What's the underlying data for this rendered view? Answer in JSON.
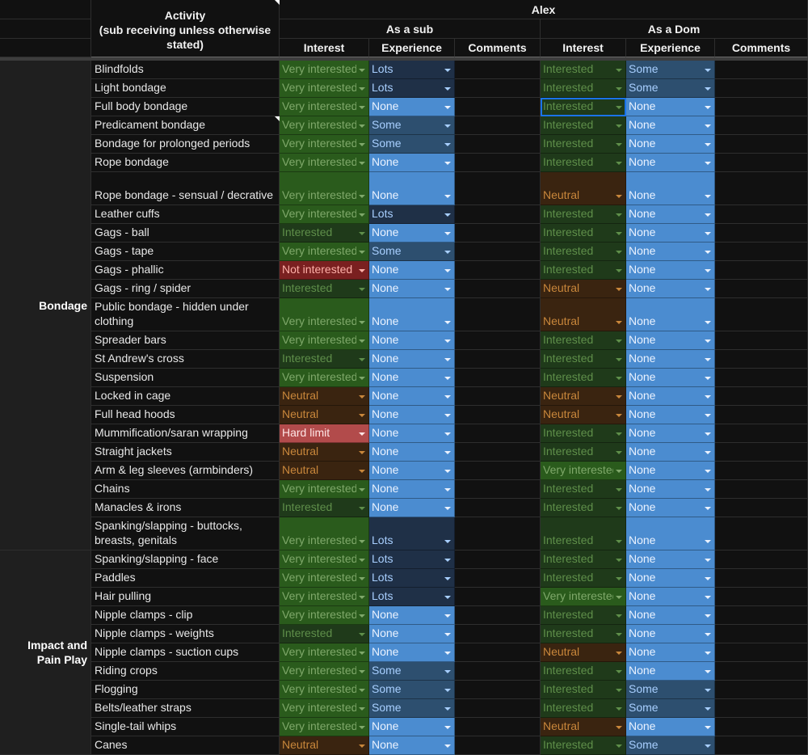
{
  "header": {
    "activity_title": "Activity\n(sub receiving unless otherwise stated)",
    "person": "Alex",
    "as_sub": "As a sub",
    "as_dom": "As a Dom",
    "interest": "Interest",
    "experience": "Experience",
    "comments": "Comments"
  },
  "colors": {
    "very_interested": "#2a5b1c",
    "interested": "#1f3a1a",
    "neutral": "#3a2410",
    "not_interested": "#7a2020",
    "hard_limit": "#b24b4b",
    "exp_none": "#4b8cd0",
    "exp_some": "#2d4f6f",
    "exp_lots": "#1f3047"
  },
  "categories": [
    {
      "label": "Bondage",
      "start": 0,
      "end": 24
    },
    {
      "label": "Impact and\nPain Play",
      "start": 24,
      "end": 36
    }
  ],
  "rows": [
    {
      "activity": "Blindfolds",
      "sub_interest": "Very interested",
      "sub_exp": "Lots",
      "dom_interest": "Interested",
      "dom_exp": "Some"
    },
    {
      "activity": "Light bondage",
      "sub_interest": "Very interested",
      "sub_exp": "Lots",
      "dom_interest": "Interested",
      "dom_exp": "Some"
    },
    {
      "activity": "Full body bondage",
      "sub_interest": "Very interested",
      "sub_exp": "None",
      "dom_interest": "Interested",
      "dom_exp": "None"
    },
    {
      "activity": "Predicament bondage",
      "sub_interest": "Very interested",
      "sub_exp": "Some",
      "dom_interest": "Interested",
      "dom_exp": "None"
    },
    {
      "activity": "Bondage for prolonged periods",
      "sub_interest": "Very interested",
      "sub_exp": "Some",
      "dom_interest": "Interested",
      "dom_exp": "None"
    },
    {
      "activity": "Rope bondage",
      "sub_interest": "Very interested",
      "sub_exp": "None",
      "dom_interest": "Interested",
      "dom_exp": "None"
    },
    {
      "activity": "Rope bondage - sensual / decrative",
      "sub_interest": "Very interested",
      "sub_exp": "None",
      "dom_interest": "Neutral",
      "dom_exp": "None",
      "tall": true
    },
    {
      "activity": "Leather cuffs",
      "sub_interest": "Very interested",
      "sub_exp": "Lots",
      "dom_interest": "Interested",
      "dom_exp": "None"
    },
    {
      "activity": "Gags - ball",
      "sub_interest": "Interested",
      "sub_exp": "None",
      "dom_interest": "Interested",
      "dom_exp": "None"
    },
    {
      "activity": "Gags - tape",
      "sub_interest": "Very interested",
      "sub_exp": "Some",
      "dom_interest": "Interested",
      "dom_exp": "None"
    },
    {
      "activity": "Gags - phallic",
      "sub_interest": "Not interested",
      "sub_exp": "None",
      "dom_interest": "Interested",
      "dom_exp": "None"
    },
    {
      "activity": "Gags - ring / spider",
      "sub_interest": "Interested",
      "sub_exp": "None",
      "dom_interest": "Neutral",
      "dom_exp": "None"
    },
    {
      "activity": "Public bondage - hidden under clothing",
      "sub_interest": "Very interested",
      "sub_exp": "None",
      "dom_interest": "Neutral",
      "dom_exp": "None",
      "tall": true
    },
    {
      "activity": "Spreader bars",
      "sub_interest": "Very interested",
      "sub_exp": "None",
      "dom_interest": "Interested",
      "dom_exp": "None"
    },
    {
      "activity": "St Andrew's cross",
      "sub_interest": "Interested",
      "sub_exp": "None",
      "dom_interest": "Interested",
      "dom_exp": "None"
    },
    {
      "activity": "Suspension",
      "sub_interest": "Very interested",
      "sub_exp": "None",
      "dom_interest": "Interested",
      "dom_exp": "None"
    },
    {
      "activity": "Locked in cage",
      "sub_interest": "Neutral",
      "sub_exp": "None",
      "dom_interest": "Neutral",
      "dom_exp": "None"
    },
    {
      "activity": "Full head hoods",
      "sub_interest": "Neutral",
      "sub_exp": "None",
      "dom_interest": "Neutral",
      "dom_exp": "None"
    },
    {
      "activity": "Mummification/saran wrapping",
      "sub_interest": "Hard limit",
      "sub_exp": "None",
      "dom_interest": "Interested",
      "dom_exp": "None"
    },
    {
      "activity": "Straight jackets",
      "sub_interest": "Neutral",
      "sub_exp": "None",
      "dom_interest": "Interested",
      "dom_exp": "None"
    },
    {
      "activity": "Arm & leg sleeves (armbinders)",
      "sub_interest": "Neutral",
      "sub_exp": "None",
      "dom_interest": "Very interested",
      "dom_exp": "None"
    },
    {
      "activity": "Chains",
      "sub_interest": "Very interested",
      "sub_exp": "None",
      "dom_interest": "Interested",
      "dom_exp": "None"
    },
    {
      "activity": "Manacles & irons",
      "sub_interest": "Interested",
      "sub_exp": "None",
      "dom_interest": "Interested",
      "dom_exp": "None"
    },
    {
      "activity": "Spanking/slapping - buttocks, breasts, genitals",
      "sub_interest": "Very interested",
      "sub_exp": "Lots",
      "dom_interest": "Interested",
      "dom_exp": "None",
      "tall": true
    },
    {
      "activity": "Spanking/slapping - face",
      "sub_interest": "Very interested",
      "sub_exp": "Lots",
      "dom_interest": "Interested",
      "dom_exp": "None"
    },
    {
      "activity": "Paddles",
      "sub_interest": "Very interested",
      "sub_exp": "Lots",
      "dom_interest": "Interested",
      "dom_exp": "None"
    },
    {
      "activity": "Hair pulling",
      "sub_interest": "Very interested",
      "sub_exp": "Lots",
      "dom_interest": "Very interested",
      "dom_exp": "None"
    },
    {
      "activity": "Nipple clamps - clip",
      "sub_interest": "Very interested",
      "sub_exp": "None",
      "dom_interest": "Interested",
      "dom_exp": "None"
    },
    {
      "activity": "Nipple clamps - weights",
      "sub_interest": "Interested",
      "sub_exp": "None",
      "dom_interest": "Interested",
      "dom_exp": "None"
    },
    {
      "activity": "Nipple clamps - suction cups",
      "sub_interest": "Very interested",
      "sub_exp": "None",
      "dom_interest": "Neutral",
      "dom_exp": "None"
    },
    {
      "activity": "Riding crops",
      "sub_interest": "Very interested",
      "sub_exp": "Some",
      "dom_interest": "Interested",
      "dom_exp": "None"
    },
    {
      "activity": "Flogging",
      "sub_interest": "Very interested",
      "sub_exp": "Some",
      "dom_interest": "Interested",
      "dom_exp": "Some"
    },
    {
      "activity": "Belts/leather straps",
      "sub_interest": "Very interested",
      "sub_exp": "Some",
      "dom_interest": "Interested",
      "dom_exp": "Some"
    },
    {
      "activity": "Single-tail whips",
      "sub_interest": "Very interested",
      "sub_exp": "None",
      "dom_interest": "Neutral",
      "dom_exp": "None"
    },
    {
      "activity": "Canes",
      "sub_interest": "Neutral",
      "sub_exp": "None",
      "dom_interest": "Interested",
      "dom_exp": "Some"
    }
  ]
}
